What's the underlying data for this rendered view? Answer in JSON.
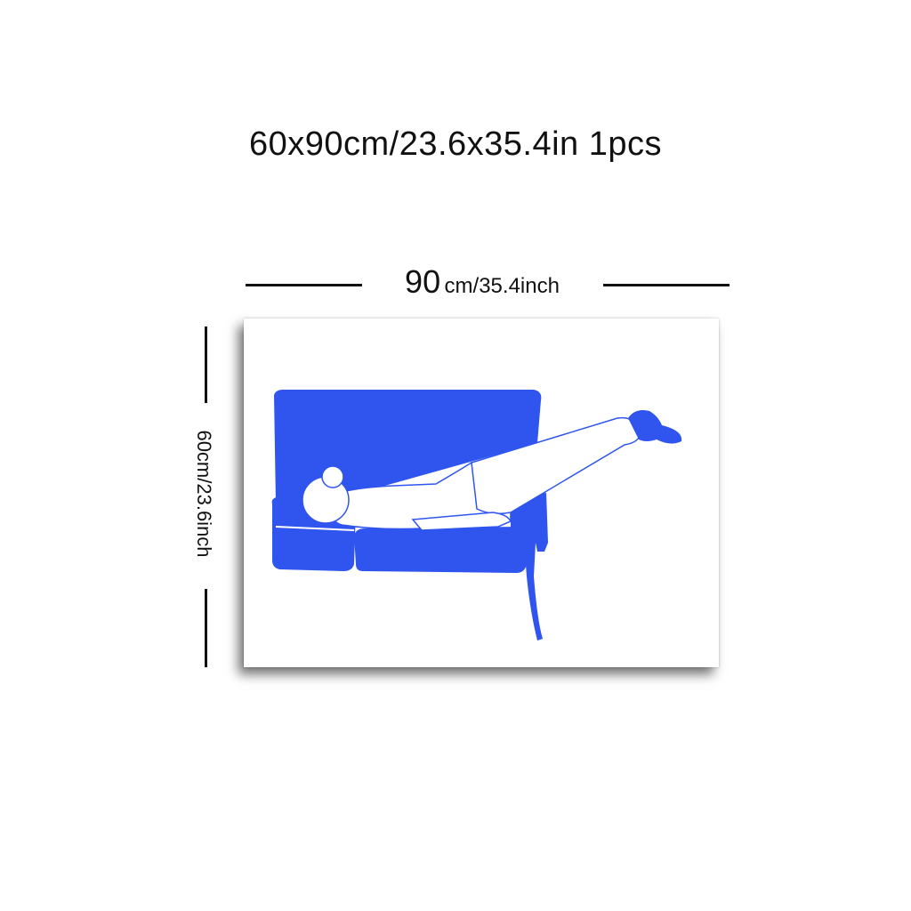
{
  "headline": "60x90cm/23.6x35.4in 1pcs",
  "width_dimension": {
    "value": "90",
    "unit": "cm/35.4inch"
  },
  "height_dimension": {
    "label": "60cm/23.6inch"
  },
  "artwork": {
    "subject": "woman-lying-on-sofa-illustration",
    "colors": {
      "sofa": "#2f55ee",
      "background": "#ffffff",
      "shadow": "#000000"
    }
  }
}
